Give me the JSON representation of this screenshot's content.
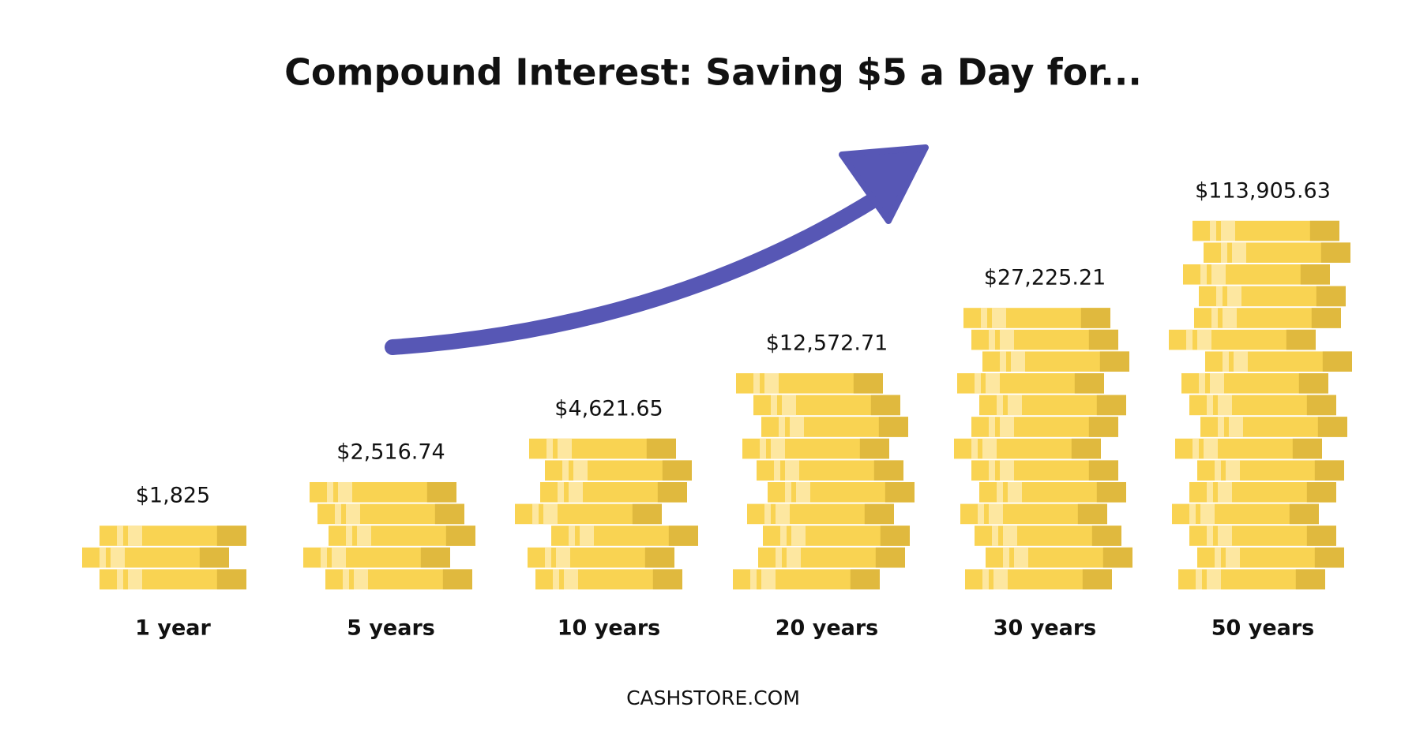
{
  "title": "Compound Interest: Saving $5 a Day for...",
  "items": [
    {
      "amount": "$1,825",
      "period": "1 year"
    },
    {
      "amount": "$2,516.74",
      "period": "5 years"
    },
    {
      "amount": "$4,621.65",
      "period": "10 years"
    },
    {
      "amount": "$12,572.71",
      "period": "20 years"
    },
    {
      "amount": "$27,225.21",
      "period": "30 years"
    },
    {
      "amount": "$113,905.63",
      "period": "50 years"
    }
  ],
  "footer": "CASHSTORE.COM"
}
